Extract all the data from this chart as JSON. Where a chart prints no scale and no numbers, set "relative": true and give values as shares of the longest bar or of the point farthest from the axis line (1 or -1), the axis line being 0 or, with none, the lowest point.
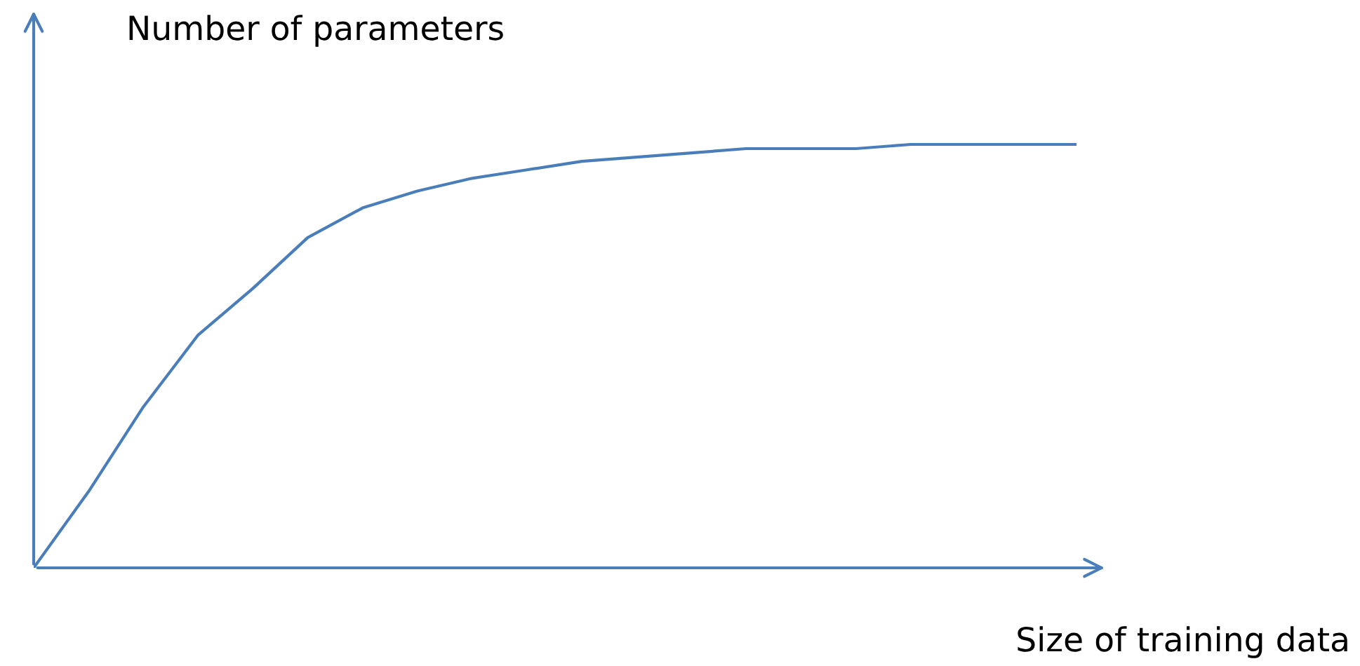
{
  "chart_data": {
    "type": "line",
    "relative": true,
    "ylabel": "Number of parameters",
    "xlabel": "Size of training data",
    "categories": [
      null,
      null,
      null,
      null,
      null,
      null,
      null,
      null,
      null,
      null,
      null,
      null,
      null,
      null,
      null,
      null,
      null,
      null,
      null,
      null
    ],
    "values": [
      0,
      0.18,
      0.38,
      0.55,
      0.66,
      0.78,
      0.85,
      0.89,
      0.92,
      0.94,
      0.96,
      0.97,
      0.98,
      0.99,
      0.99,
      0.99,
      1.0,
      1.0,
      1.0,
      1.0
    ],
    "color": "#4a7ebb"
  }
}
